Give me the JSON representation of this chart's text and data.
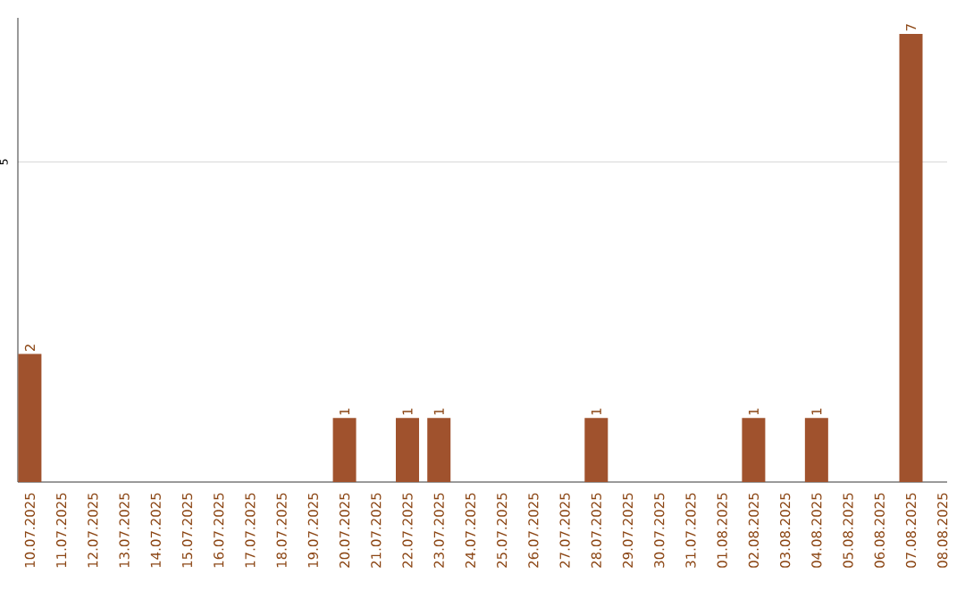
{
  "chart_data": {
    "type": "bar",
    "categories": [
      "10.07.2025",
      "11.07.2025",
      "12.07.2025",
      "13.07.2025",
      "14.07.2025",
      "15.07.2025",
      "16.07.2025",
      "17.07.2025",
      "18.07.2025",
      "19.07.2025",
      "20.07.2025",
      "21.07.2025",
      "22.07.2025",
      "23.07.2025",
      "24.07.2025",
      "25.07.2025",
      "26.07.2025",
      "27.07.2025",
      "28.07.2025",
      "29.07.2025",
      "30.07.2025",
      "31.07.2025",
      "01.08.2025",
      "02.08.2025",
      "03.08.2025",
      "04.08.2025",
      "05.08.2025",
      "06.08.2025",
      "07.08.2025",
      "08.08.2025"
    ],
    "values": [
      2,
      0,
      0,
      0,
      0,
      0,
      0,
      0,
      0,
      0,
      1,
      0,
      1,
      1,
      0,
      0,
      0,
      0,
      1,
      0,
      0,
      0,
      0,
      1,
      0,
      1,
      0,
      0,
      7,
      0
    ],
    "value_labels": [
      "2",
      null,
      null,
      null,
      null,
      null,
      null,
      null,
      null,
      null,
      "1",
      null,
      "1",
      "1",
      null,
      null,
      null,
      null,
      "1",
      null,
      null,
      null,
      null,
      "1",
      null,
      "1",
      null,
      null,
      "7",
      null
    ],
    "color": "#a0522d",
    "ylim": [
      0,
      7.25
    ],
    "yticks": [
      5
    ],
    "grid": "y"
  }
}
